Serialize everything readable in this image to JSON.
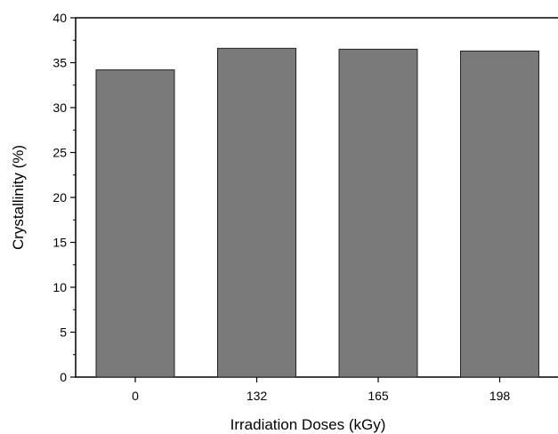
{
  "chart_data": {
    "type": "bar",
    "categories": [
      "0",
      "132",
      "165",
      "198"
    ],
    "values": [
      34.2,
      36.6,
      36.5,
      36.3
    ],
    "xlabel": "Irradiation Doses (kGy)",
    "ylabel": "Crystallinity (%)",
    "ylim": [
      0,
      40
    ],
    "yticks": [
      0,
      5,
      10,
      15,
      20,
      25,
      30,
      35,
      40
    ],
    "grid": false,
    "bar_color": "#7a7a7a",
    "bar_stroke": "#222222"
  }
}
